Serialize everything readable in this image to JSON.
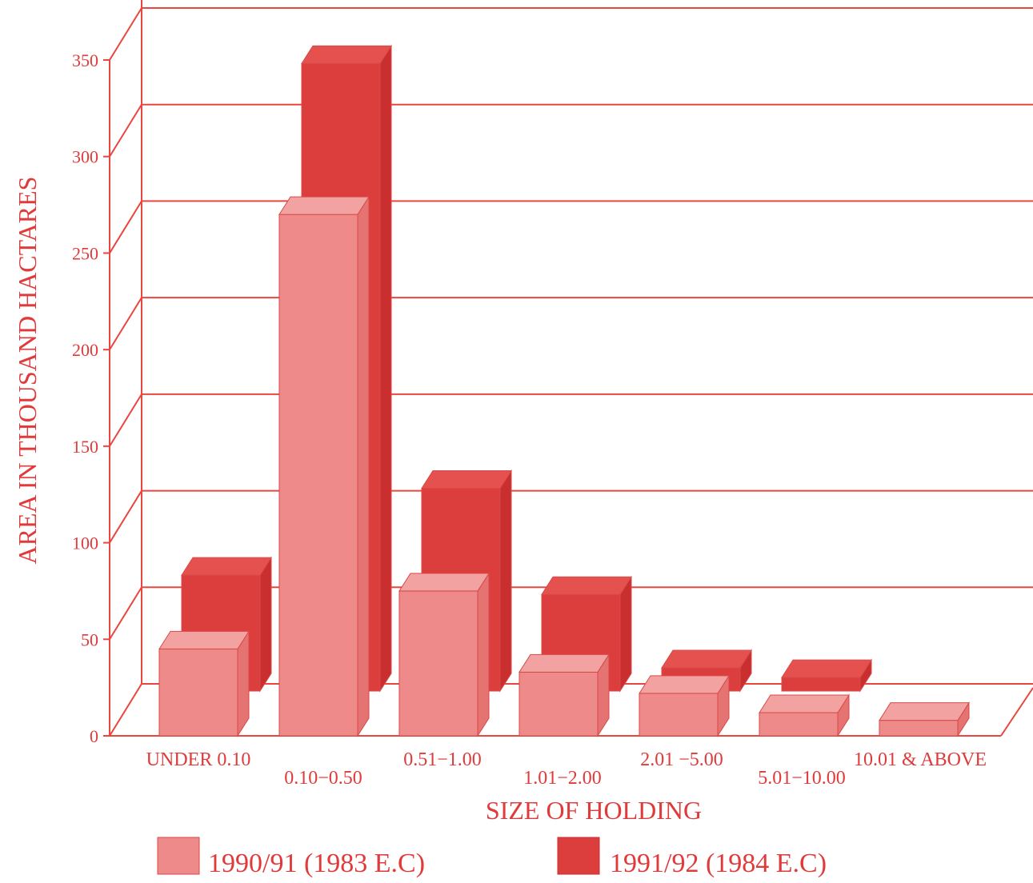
{
  "colors": {
    "axis": "#e8463f",
    "series1_front": "#ee8a89",
    "series1_side": "#e57372",
    "series1_top": "#f2a3a1",
    "series2_front": "#dc3e3d",
    "series2_side": "#c92f2f",
    "series2_top": "#e4514f",
    "text": "#e03a3a"
  },
  "chart_data": {
    "type": "bar",
    "categories": [
      "UNDER 0.10",
      "0.10−0.50",
      "0.51−1.00",
      "1.01−2.00",
      "2.01 −5.00",
      "5.01−10.00",
      "10.01 & ABOVE"
    ],
    "series": [
      {
        "name": "1990/91 (1983 E.C)",
        "values": [
          45,
          270,
          75,
          33,
          22,
          12,
          8
        ]
      },
      {
        "name": "1991/92 (1984 E.C)",
        "values": [
          60,
          325,
          105,
          50,
          12,
          7,
          0
        ]
      }
    ],
    "xlabel": "SIZE OF HOLDING",
    "ylabel": "AREA IN THOUSAND HACTARES",
    "ylim": [
      0,
      350
    ],
    "yticks": [
      0,
      50,
      100,
      150,
      200,
      250,
      300,
      350
    ],
    "grid": true,
    "legend_position": "bottom",
    "style": "3d"
  }
}
